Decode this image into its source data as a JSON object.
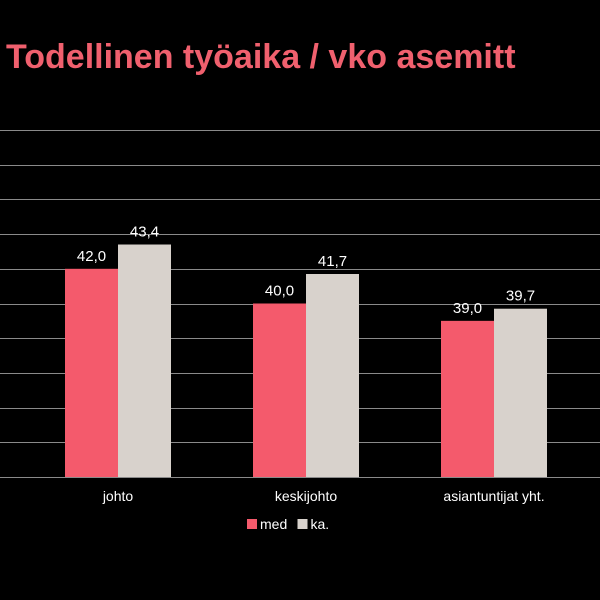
{
  "chart_data": {
    "type": "bar",
    "title": "Todellinen työaika / vko asemitt",
    "categories": [
      "johto",
      "keskijohto",
      "asiantuntijat yht."
    ],
    "series": [
      {
        "name": "med",
        "values": [
          42.0,
          40.0,
          39.0
        ],
        "color": "#f45a6c",
        "labels": [
          "42,0",
          "40,0",
          "39,0"
        ]
      },
      {
        "name": "ka.",
        "values": [
          43.4,
          41.7,
          39.7
        ],
        "color": "#d8d2cc",
        "labels": [
          "43,4",
          "41,7",
          "39,7"
        ]
      }
    ],
    "ylim": [
      30,
      50
    ],
    "grid": true,
    "legend_position": "bottom",
    "background": "#000000",
    "title_color": "#f0606e"
  }
}
